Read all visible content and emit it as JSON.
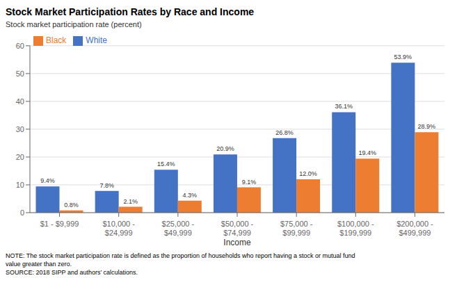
{
  "chart_data": {
    "type": "bar",
    "title": "Stock Market Participation Rates by Race and Income",
    "ylabel": "Stock market participation rate (percent)",
    "xlabel": "Income",
    "categories": [
      "$1 - $9,999",
      "$10,000 -\n$24,999",
      "$25,000 -\n$49,999",
      "$50,000 -\n$74,999",
      "$75,000 -\n$99,999",
      "$100,000 -\n$199,999",
      "$200,000 -\n$499,999"
    ],
    "series": [
      {
        "name": "White",
        "color": "#4472C4",
        "values": [
          9.4,
          7.8,
          15.4,
          20.9,
          26.8,
          36.1,
          53.9
        ],
        "value_labels": [
          "9.4%",
          "7.8%",
          "15.4%",
          "20.9%",
          "26.8%",
          "36.1%",
          "53.9%"
        ]
      },
      {
        "name": "Black",
        "color": "#ED7D31",
        "values": [
          0.8,
          2.1,
          4.3,
          9.1,
          12.0,
          19.4,
          28.9
        ],
        "value_labels": [
          "0.8%",
          "2.1%",
          "4.3%",
          "9.1%",
          "12.0%",
          "19.4%",
          "28.9%"
        ]
      }
    ],
    "ylim": [
      0,
      60
    ],
    "yticks": [
      0,
      10,
      20,
      30,
      40,
      50,
      60
    ],
    "grid": true,
    "legend": "upper left",
    "data_labels": true,
    "annotations": [
      "NOTE: The stock market participation rate is defined as the proportion of households who report having a stock or mutual fund",
      "value greater than zero.",
      "SOURCE: 2018 SIPP and authors’ calculations."
    ]
  }
}
